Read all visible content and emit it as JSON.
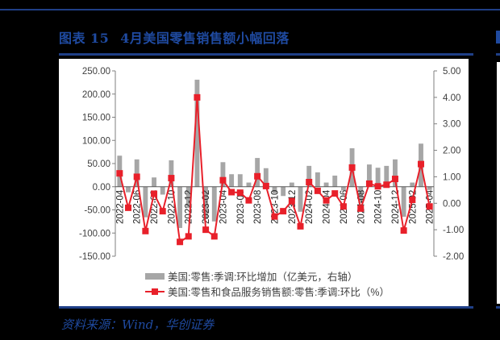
{
  "header": {
    "figure_label": "图表",
    "figure_number": "15",
    "title": "4月美国零售销售额小幅回落"
  },
  "footer": {
    "source": "资料来源：Wind，华创证券"
  },
  "legend": {
    "bar_label": "美国:零售:季调:环比增加（亿美元，右轴）",
    "line_label": "美国:零售和食品服务销售额:零售:季调:环比（%）"
  },
  "colors": {
    "bar": "#a6a6a6",
    "line": "#e8202a",
    "title_blue": "#1f4aa0",
    "rule_blue": "#1f3f87"
  },
  "chart_data": {
    "type": "bar+line",
    "title": "4月美国零售销售额小幅回落",
    "categories": [
      "2022-04",
      "2022-05",
      "2022-06",
      "2022-07",
      "2022-08",
      "2022-09",
      "2022-10",
      "2022-11",
      "2022-12",
      "2023-01",
      "2023-02",
      "2023-03",
      "2023-04",
      "2023-05",
      "2023-06",
      "2023-07",
      "2023-08",
      "2023-09",
      "2023-10",
      "2023-11",
      "2023-12",
      "2024-01",
      "2024-02",
      "2024-03",
      "2024-04",
      "2024-05",
      "2024-06",
      "2024-07",
      "2024-08",
      "2024-09",
      "2024-10",
      "2024-11",
      "2024-12",
      "2025-01",
      "2025-02",
      "2025-03",
      "2025-04"
    ],
    "x_tick_labels": [
      "2022-04",
      "2022-06",
      "2022-08",
      "2022-10",
      "2022-12",
      "2023-02",
      "2023-04",
      "2023-06",
      "2023-08",
      "2023-10",
      "2023-12",
      "2024-02",
      "2024-04",
      "2024-06",
      "2024-08",
      "2024-10",
      "2024-12",
      "2025-02",
      "2025-04"
    ],
    "series": [
      {
        "name": "美国:零售:季调:环比增加（亿美元，右轴）",
        "type": "bar",
        "axis": "left",
        "values": [
          67,
          -12,
          59,
          -66,
          20,
          -17,
          57,
          -89,
          -46,
          231,
          -70,
          -75,
          53,
          27,
          27,
          9,
          62,
          40,
          -14,
          -20,
          9,
          -54,
          45,
          31,
          9,
          24,
          -8,
          83,
          -35,
          48,
          41,
          45,
          59,
          -65,
          9,
          93,
          -7
        ]
      },
      {
        "name": "美国:零售和食品服务销售额:零售:季调:环比（%）",
        "type": "line",
        "axis": "right",
        "values": [
          1.13,
          -0.17,
          1.0,
          -1.05,
          0.36,
          -0.3,
          0.95,
          -1.46,
          -1.25,
          4.0,
          -1.0,
          -1.25,
          0.87,
          0.42,
          0.4,
          0.11,
          1.02,
          0.65,
          -0.5,
          -0.3,
          0.08,
          -0.87,
          0.8,
          0.47,
          0.11,
          0.37,
          -0.12,
          1.35,
          -0.2,
          0.74,
          0.64,
          0.7,
          0.92,
          -1.03,
          0.13,
          1.48,
          -0.12
        ]
      }
    ],
    "left_axis": {
      "ylim": [
        -150,
        250
      ],
      "ticks": [
        "250.00",
        "200.00",
        "150.00",
        "100.00",
        "50.00",
        "0.00",
        "-50.00",
        "-100.00",
        "-150.00"
      ]
    },
    "right_axis": {
      "ylim": [
        -2,
        5
      ],
      "ticks": [
        "5.00",
        "4.00",
        "3.00",
        "2.00",
        "1.00",
        "0.00",
        "-1.00",
        "-2.00"
      ]
    },
    "grid": false,
    "legend_position": "bottom"
  }
}
